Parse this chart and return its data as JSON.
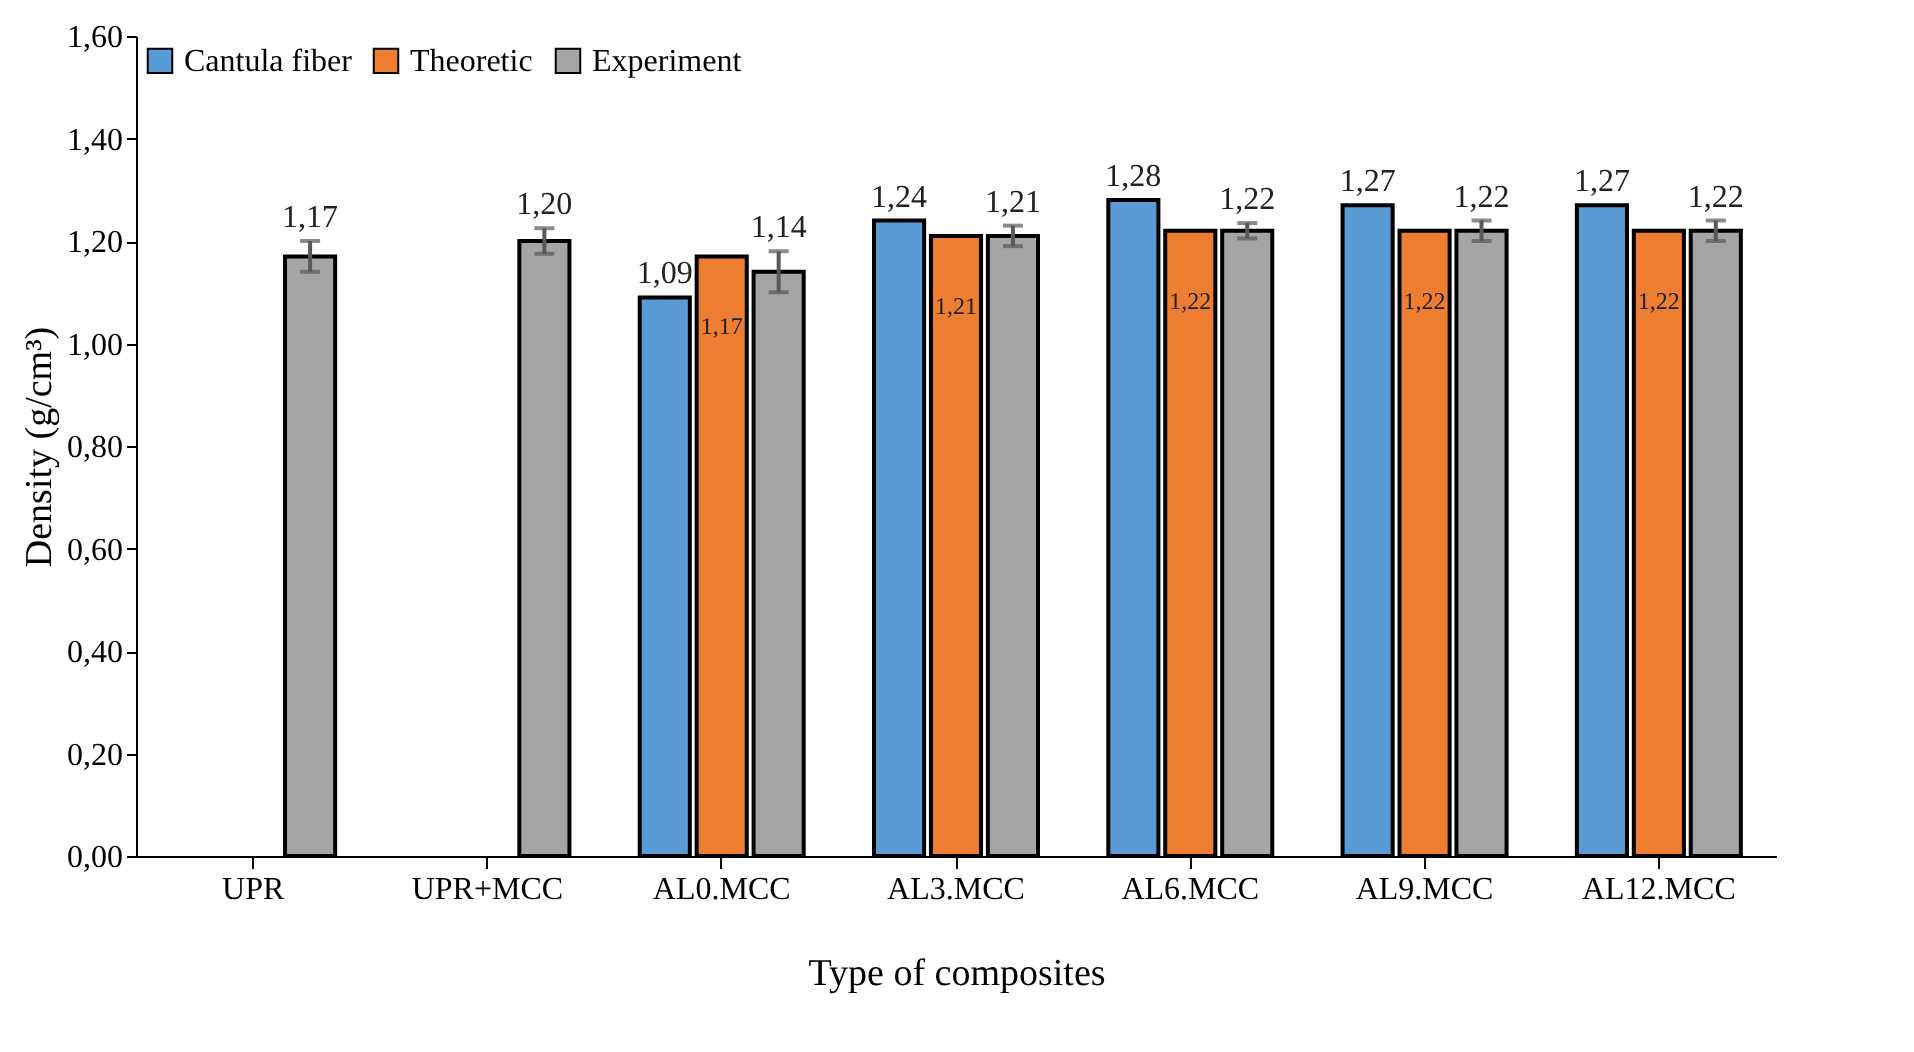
{
  "chart_data": {
    "type": "bar",
    "xlabel": "Type of composites",
    "ylabel": "Density (g/cm³)",
    "categories": [
      "UPR",
      "UPR+MCC",
      "AL0.MCC",
      "AL3.MCC",
      "AL6.MCC",
      "AL9.MCC",
      "AL12.MCC"
    ],
    "series": [
      {
        "name": "Cantula fiber",
        "color": "#5b9bd5",
        "values": [
          null,
          null,
          1.09,
          1.24,
          1.28,
          1.27,
          1.27
        ],
        "value_labels": [
          null,
          null,
          "1,09",
          "1,24",
          "1,28",
          "1,27",
          "1,27"
        ]
      },
      {
        "name": "Theoretic",
        "color": "#ed7d31",
        "values": [
          null,
          null,
          1.17,
          1.21,
          1.22,
          1.22,
          1.22
        ],
        "value_labels": [
          null,
          null,
          "1,17",
          "1,21",
          "1,22",
          "1,22",
          "1,22"
        ]
      },
      {
        "name": "Experiment",
        "color": "#a5a5a5",
        "values": [
          1.17,
          1.2,
          1.14,
          1.21,
          1.22,
          1.22,
          1.22
        ],
        "value_labels": [
          "1,17",
          "1,20",
          "1,14",
          "1,21",
          "1,22",
          "1,22",
          "1,22"
        ],
        "errors": [
          0.03,
          0.025,
          0.04,
          0.02,
          0.015,
          0.02,
          0.02
        ]
      }
    ],
    "ylim": [
      0,
      1.6
    ],
    "yticks": [
      {
        "value": 0,
        "label": "0,00"
      },
      {
        "value": 0.2,
        "label": "0,20"
      },
      {
        "value": 0.4,
        "label": "0,40"
      },
      {
        "value": 0.6,
        "label": "0,60"
      },
      {
        "value": 0.8,
        "label": "0,80"
      },
      {
        "value": 1.0,
        "label": "1,00"
      },
      {
        "value": 1.2,
        "label": "1,20"
      },
      {
        "value": 1.4,
        "label": "1,40"
      },
      {
        "value": 1.6,
        "label": "1,60"
      }
    ],
    "grid": false,
    "legend": "top left"
  }
}
